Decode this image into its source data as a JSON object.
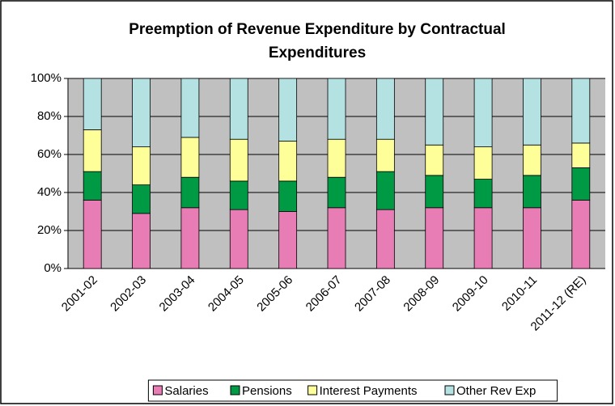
{
  "chart_data": {
    "type": "stacked_bar",
    "title": [
      "Preemption of Revenue Expenditure by Contractual",
      "Expenditures"
    ],
    "categories": [
      "2001-02",
      "2002-03",
      "2003-04",
      "2004-05",
      "2005-06",
      "2006-07",
      "2007-08",
      "2008-09",
      "2009-10",
      "2010-11",
      "2011-12 (RE)"
    ],
    "series": [
      {
        "name": "Salaries",
        "color": "#e87cb4",
        "values": [
          36,
          29,
          32,
          31,
          30,
          32,
          31,
          32,
          32,
          32,
          36
        ]
      },
      {
        "name": "Pensions",
        "color": "#009944",
        "values": [
          15,
          15,
          16,
          15,
          16,
          16,
          20,
          17,
          15,
          17,
          17
        ]
      },
      {
        "name": "Interest Payments",
        "color": "#ffff99",
        "values": [
          22,
          20,
          21,
          22,
          21,
          20,
          17,
          16,
          17,
          16,
          13
        ]
      },
      {
        "name": "Other Rev Exp",
        "color": "#b4e2e2",
        "values": [
          27,
          36,
          31,
          32,
          33,
          32,
          32,
          35,
          36,
          35,
          34
        ]
      }
    ],
    "ylim": [
      0,
      100
    ],
    "yticks": [
      {
        "value": 0,
        "label": "0%"
      },
      {
        "value": 20,
        "label": "20%"
      },
      {
        "value": 40,
        "label": "40%"
      },
      {
        "value": 60,
        "label": "60%"
      },
      {
        "value": 80,
        "label": "80%"
      },
      {
        "value": 100,
        "label": "100%"
      }
    ],
    "grid": true,
    "legend": "bottom"
  }
}
